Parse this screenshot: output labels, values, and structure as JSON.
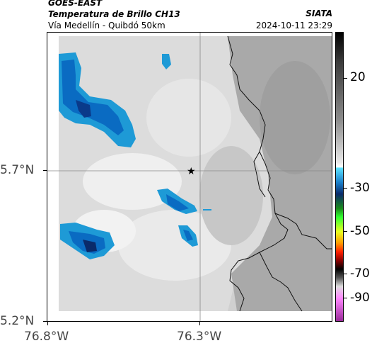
{
  "header": {
    "satellite": "GOES-EAST",
    "product": "Temperatura de Brillo CH13",
    "region": "Vía Medellín - Quibdó 50km",
    "org": "SIATA",
    "datetime": "2024-10-11 23:29"
  },
  "map": {
    "lat_ticks": [
      "5.7°N",
      "5.2°N"
    ],
    "lon_ticks": [
      "76.8°W",
      "76.3°W"
    ],
    "marker_icon": "star-icon"
  },
  "colorbar": {
    "labels": [
      "20",
      "-30",
      "-50",
      "-70",
      "-90"
    ]
  },
  "colors": {
    "cold_cloud": "#0a6bc2",
    "coldest_cloud": "#0a2a6a",
    "frame": "#000000"
  }
}
